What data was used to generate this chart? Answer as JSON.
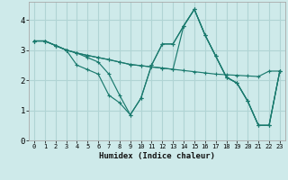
{
  "xlabel": "Humidex (Indice chaleur)",
  "bg_color": "#ceeaea",
  "grid_color": "#b0d4d4",
  "line_color": "#1a7a6e",
  "xlim": [
    -0.5,
    23.5
  ],
  "ylim": [
    0,
    4.6
  ],
  "xticks": [
    0,
    1,
    2,
    3,
    4,
    5,
    6,
    7,
    8,
    9,
    10,
    11,
    12,
    13,
    14,
    15,
    16,
    17,
    18,
    19,
    20,
    21,
    22,
    23
  ],
  "yticks": [
    0,
    1,
    2,
    3,
    4
  ],
  "series": [
    [
      3.3,
      3.3,
      3.15,
      3.0,
      2.9,
      2.82,
      2.75,
      2.68,
      2.6,
      2.52,
      2.48,
      2.44,
      2.4,
      2.36,
      2.32,
      2.28,
      2.24,
      2.2,
      2.18,
      2.16,
      2.14,
      2.12,
      2.3,
      2.3
    ],
    [
      3.3,
      3.3,
      3.15,
      3.0,
      2.9,
      2.82,
      2.75,
      2.68,
      2.6,
      2.52,
      2.48,
      2.44,
      2.4,
      2.36,
      3.8,
      4.35,
      3.5,
      2.8,
      2.1,
      1.9,
      1.3,
      0.5,
      0.5,
      2.3
    ],
    [
      3.3,
      3.3,
      3.15,
      3.0,
      2.9,
      2.75,
      2.6,
      2.2,
      1.5,
      0.85,
      1.4,
      2.5,
      3.2,
      3.2,
      3.8,
      4.35,
      3.5,
      2.8,
      2.1,
      1.9,
      1.3,
      0.5,
      0.5,
      2.3
    ],
    [
      3.3,
      3.3,
      3.15,
      3.0,
      2.5,
      2.35,
      2.2,
      1.5,
      1.25,
      0.85,
      1.4,
      2.5,
      3.2,
      3.2,
      3.8,
      4.35,
      3.5,
      2.8,
      2.1,
      1.9,
      1.3,
      0.5,
      0.5,
      2.3
    ]
  ]
}
